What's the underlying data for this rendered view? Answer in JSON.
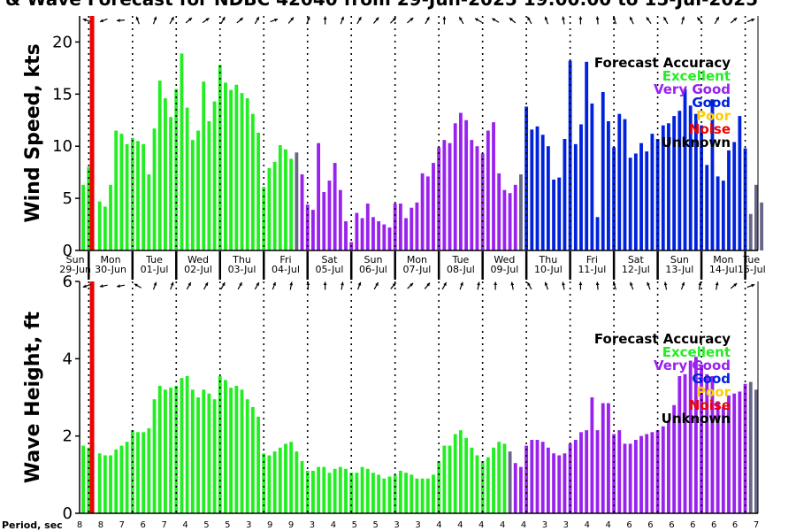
{
  "title": "& Wave Forecast for NDBC 42040 from 29-Jun-2025 19:00:00 to 15-Jul-2025",
  "colors": {
    "excellent": "#22ee22",
    "very_good": "#9922ee",
    "good": "#0022dd",
    "poor": "#ffcc00",
    "noise": "#ee0000",
    "unknown": "#000000",
    "transition": "#666688"
  },
  "legend": {
    "title": "Forecast Accuracy",
    "items": [
      {
        "label": "Excellent",
        "color": "#22ee22"
      },
      {
        "label": "Very Good",
        "color": "#9922ee"
      },
      {
        "label": "Good",
        "color": "#0022dd"
      },
      {
        "label": "Poor",
        "color": "#ffcc00"
      },
      {
        "label": "Noise",
        "color": "#ee0000"
      },
      {
        "label": "Unknown",
        "color": "#000000"
      }
    ]
  },
  "days": [
    {
      "dow": "Sun",
      "date": "29-Jun"
    },
    {
      "dow": "Mon",
      "date": "30-Jun"
    },
    {
      "dow": "Tue",
      "date": "01-Jul"
    },
    {
      "dow": "Wed",
      "date": "02-Jul"
    },
    {
      "dow": "Thu",
      "date": "03-Jul"
    },
    {
      "dow": "Fri",
      "date": "04-Jul"
    },
    {
      "dow": "Sat",
      "date": "05-Jul"
    },
    {
      "dow": "Sun",
      "date": "06-Jul"
    },
    {
      "dow": "Mon",
      "date": "07-Jul"
    },
    {
      "dow": "Tue",
      "date": "08-Jul"
    },
    {
      "dow": "Wed",
      "date": "09-Jul"
    },
    {
      "dow": "Thu",
      "date": "10-Jul"
    },
    {
      "dow": "Fri",
      "date": "11-Jul"
    },
    {
      "dow": "Sat",
      "date": "12-Jul"
    },
    {
      "dow": "Sun",
      "date": "13-Jul"
    },
    {
      "dow": "Mon",
      "date": "14-Jul"
    },
    {
      "dow": "Tue",
      "date": "15-Jul"
    }
  ],
  "period_label": "Period, sec",
  "periods": [
    "8",
    "8",
    "7",
    "6",
    "7",
    "4",
    "5",
    "5",
    "3",
    "9",
    "9",
    "3",
    "4",
    "5",
    "5",
    "3",
    "3",
    "4",
    "4",
    "4",
    "4",
    "4",
    "3",
    "3",
    "4",
    "4",
    "6",
    "6",
    "6",
    "6",
    "6",
    "6",
    "7"
  ],
  "chart_data": [
    {
      "type": "bar",
      "ylabel": "Wind Speed, kts",
      "ylim": [
        0,
        22.5
      ],
      "yticks": [
        0,
        5,
        10,
        15,
        20
      ],
      "x_unit": "hours from 29-Jun-2025 19:00",
      "x_step_hours": 3,
      "values": [
        6.3,
        8,
        0,
        4.7,
        4.2,
        6.3,
        11.5,
        11.2,
        10.2,
        10.8,
        10.5,
        10.2,
        7.3,
        11.7,
        16.3,
        14.6,
        12.8,
        15.5,
        18.9,
        13.7,
        10.6,
        11.5,
        16.2,
        12.4,
        14.3,
        17.8,
        16.1,
        15.4,
        15.9,
        15.1,
        14.6,
        13.1,
        11.3,
        6.1,
        7.9,
        8.5,
        10.1,
        9.7,
        8.8,
        9.4,
        7.3,
        4.4,
        3.9,
        10.3,
        5.6,
        6.7,
        8.4,
        5.8,
        2.8,
        0.8,
        3.6,
        3.1,
        4.5,
        3.2,
        2.8,
        2.5,
        2.2,
        4.5,
        4.5,
        3.1,
        4.1,
        4.6,
        7.4,
        7.1,
        8.4,
        9.9,
        10.6,
        10.3,
        12.2,
        13.2,
        12.5,
        10.6,
        10.0,
        9.3,
        11.5,
        12.3,
        7.4,
        5.8,
        5.5,
        6.3,
        7.3,
        13.8,
        11.6,
        11.9,
        11.1,
        10.0,
        6.8,
        7.0,
        10.7,
        18.2,
        10.2,
        12.1,
        18.1,
        14.1,
        3.2,
        15.2,
        12.4,
        9.9,
        13.1,
        12.6,
        8.9,
        9.3,
        10.3,
        9.5,
        11.2,
        10.7,
        12.0,
        12.2,
        12.9,
        13.4,
        15.5,
        13.9,
        13.1,
        12.0,
        8.2,
        14.5,
        7.1,
        6.7,
        9.6,
        10.4,
        12.9,
        9.8,
        3.5,
        6.3,
        4.6
      ],
      "accuracy_segments": [
        {
          "from_hour": 0,
          "to_hour": 117,
          "rating": "Excellent"
        },
        {
          "from_hour": 120,
          "to_hour": 240,
          "rating": "Very Good"
        },
        {
          "from_hour": 243,
          "to_hour": 366,
          "rating": "Good"
        }
      ]
    },
    {
      "type": "bar",
      "ylabel": "Wave Height, ft",
      "ylim": [
        0,
        6
      ],
      "yticks": [
        0,
        2,
        4,
        6
      ],
      "x_unit": "hours from 29-Jun-2025 19:00",
      "x_step_hours": 3,
      "values": [
        1.75,
        1.7,
        0,
        1.55,
        1.5,
        1.5,
        1.65,
        1.75,
        1.85,
        2.15,
        2.1,
        2.1,
        2.2,
        2.95,
        3.3,
        3.2,
        3.25,
        3.3,
        3.5,
        3.55,
        3.2,
        3.0,
        3.2,
        3.1,
        2.95,
        3.55,
        3.45,
        3.25,
        3.3,
        3.2,
        2.95,
        2.75,
        2.5,
        1.55,
        1.5,
        1.6,
        1.7,
        1.8,
        1.85,
        1.6,
        1.35,
        1.1,
        1.1,
        1.2,
        1.2,
        1.05,
        1.15,
        1.2,
        1.15,
        1.05,
        1.05,
        1.2,
        1.15,
        1.05,
        1.0,
        0.9,
        0.95,
        1.0,
        1.1,
        1.05,
        1.0,
        0.9,
        0.9,
        0.9,
        1.0,
        1.35,
        1.75,
        1.75,
        2.05,
        2.15,
        1.95,
        1.7,
        1.5,
        1.35,
        1.45,
        1.7,
        1.85,
        1.8,
        1.6,
        1.3,
        1.2,
        1.75,
        1.9,
        1.9,
        1.85,
        1.7,
        1.55,
        1.5,
        1.55,
        1.8,
        1.9,
        2.1,
        2.15,
        3.0,
        2.15,
        2.85,
        2.85,
        2.05,
        2.15,
        1.8,
        1.8,
        1.9,
        2.0,
        2.05,
        2.1,
        2.15,
        2.25,
        2.4,
        2.8,
        3.55,
        3.6,
        3.95,
        4.05,
        3.85,
        3.6,
        3.55,
        2.9,
        2.75,
        3.05,
        3.1,
        3.15,
        3.35,
        3.4,
        3.2
      ],
      "accuracy_segments": [
        {
          "from_hour": 0,
          "to_hour": 234,
          "rating": "Excellent"
        },
        {
          "from_hour": 237,
          "to_hour": 366,
          "rating": "Very Good"
        }
      ]
    }
  ]
}
